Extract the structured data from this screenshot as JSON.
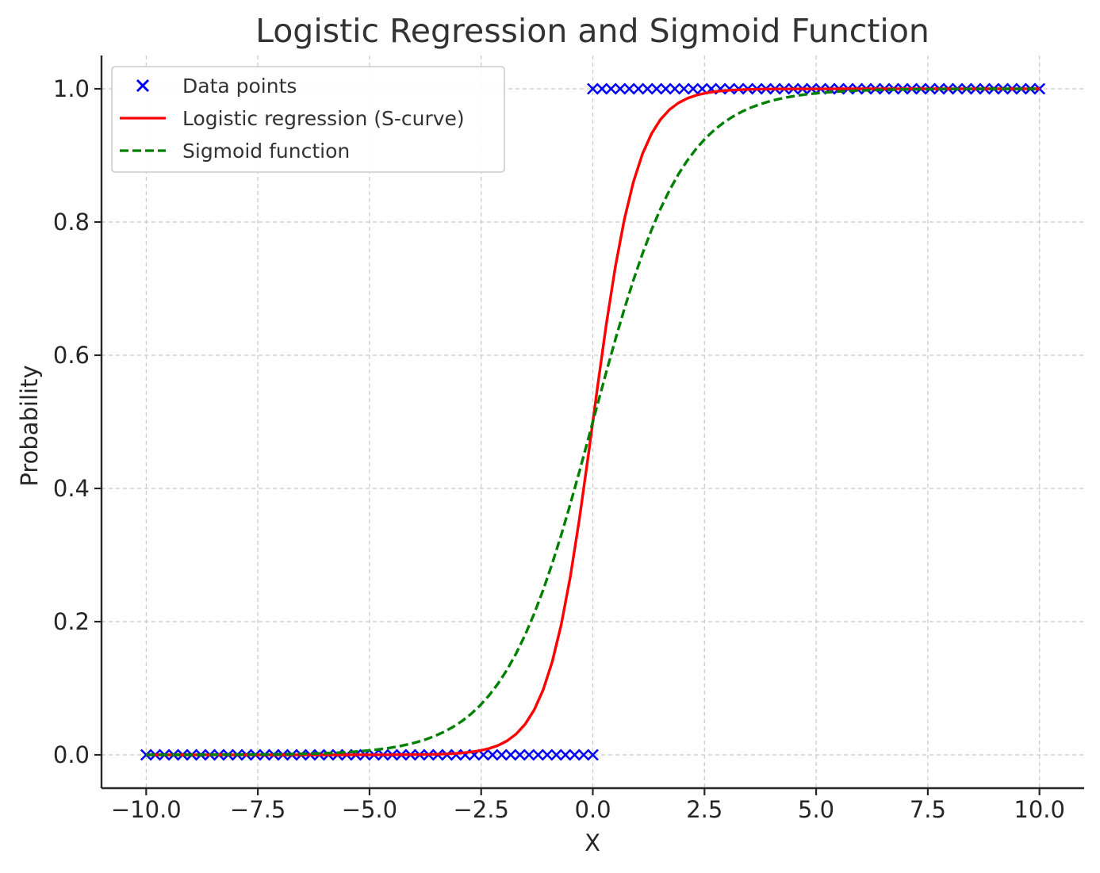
{
  "chart_data": {
    "type": "line",
    "title": "Logistic Regression and Sigmoid Function",
    "xlabel": "X",
    "ylabel": "Probability",
    "xlim": [
      -11,
      11
    ],
    "ylim": [
      -0.05,
      1.05
    ],
    "x_ticks": [
      -10,
      -7.5,
      -5,
      -2.5,
      0,
      2.5,
      5,
      7.5,
      10
    ],
    "x_tick_labels": [
      "−10.0",
      "−7.5",
      "−5.0",
      "−2.5",
      "0.0",
      "2.5",
      "5.0",
      "7.5",
      "10.0"
    ],
    "y_ticks": [
      0,
      0.2,
      0.4,
      0.6,
      0.8,
      1.0
    ],
    "y_tick_labels": [
      "0.0",
      "0.2",
      "0.4",
      "0.6",
      "0.8",
      "1.0"
    ],
    "grid": true,
    "legend_position": "top-left",
    "series": [
      {
        "name": "Data points",
        "kind": "scatter",
        "marker": "x",
        "color": "#0000ff",
        "groups": [
          {
            "x_start": -10,
            "x_end": 0,
            "count": 50,
            "y": 0
          },
          {
            "x_start": 0,
            "x_end": 10,
            "count": 50,
            "y": 1
          }
        ]
      },
      {
        "name": "Logistic regression (S-curve)",
        "kind": "line",
        "style": "solid",
        "color": "#ff0000",
        "function": "1 / (1 + exp(-2 * x))",
        "x_range": [
          -10,
          10
        ],
        "samples": 100
      },
      {
        "name": "Sigmoid function",
        "kind": "line",
        "style": "dashed",
        "color": "#008000",
        "function": "1 / (1 + exp(-x))",
        "x_range": [
          -10,
          10
        ],
        "samples": 100
      }
    ]
  }
}
